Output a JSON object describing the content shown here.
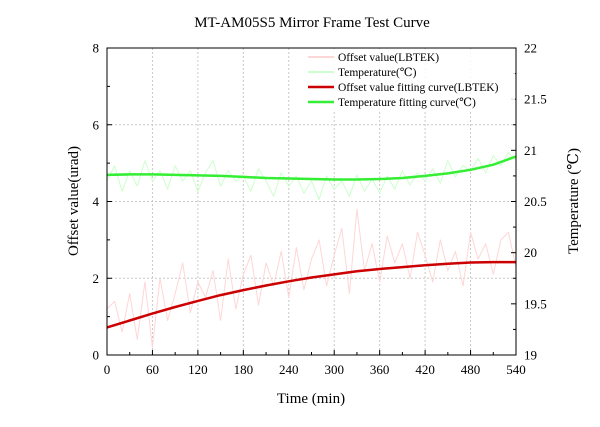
{
  "chart_data": {
    "type": "line",
    "title": "MT-AM05S5 Mirror Frame Test Curve",
    "xlabel": "Time (min)",
    "ylabel": "Offset value(urad)",
    "y2label": "Temperature (℃)",
    "xlim": [
      0,
      540
    ],
    "ylim": [
      0,
      8
    ],
    "y2lim": [
      19,
      22
    ],
    "xticks": [
      "0",
      "60",
      "120",
      "180",
      "240",
      "300",
      "360",
      "420",
      "480",
      "540"
    ],
    "yticks": [
      "0",
      "2",
      "4",
      "6",
      "8"
    ],
    "y2ticks": [
      "19",
      "19.5",
      "20",
      "20.5",
      "21",
      "21.5",
      "22"
    ],
    "grid": true,
    "legend_position": "top-right",
    "series": [
      {
        "name": "Offset value(LBTEK)",
        "axis": "left",
        "color": "#ffd6d6",
        "x": [
          0,
          10,
          20,
          30,
          40,
          50,
          60,
          70,
          80,
          90,
          100,
          110,
          120,
          130,
          140,
          150,
          160,
          170,
          180,
          190,
          200,
          210,
          220,
          230,
          240,
          250,
          260,
          270,
          280,
          290,
          300,
          310,
          320,
          330,
          340,
          350,
          360,
          370,
          380,
          390,
          400,
          410,
          420,
          430,
          440,
          450,
          460,
          470,
          480,
          490,
          500,
          510,
          520,
          530,
          540
        ],
        "values": [
          1.2,
          1.4,
          0.6,
          1.6,
          0.4,
          1.9,
          0.2,
          2.0,
          0.9,
          1.6,
          2.4,
          1.1,
          1.9,
          1.5,
          2.2,
          0.9,
          2.5,
          1.2,
          2.1,
          2.6,
          1.3,
          2.4,
          1.8,
          2.7,
          1.5,
          2.8,
          1.7,
          2.5,
          3.0,
          1.8,
          2.6,
          3.3,
          1.6,
          3.8,
          2.2,
          2.9,
          1.9,
          3.1,
          2.4,
          2.9,
          2.0,
          3.2,
          2.6,
          1.9,
          3.0,
          2.2,
          2.7,
          1.8,
          3.2,
          2.5,
          2.9,
          2.1,
          3.0,
          3.2,
          2.3
        ]
      },
      {
        "name": "Temperature(℃)",
        "axis": "right",
        "color": "#ccffcc",
        "x": [
          0,
          10,
          20,
          30,
          40,
          50,
          60,
          70,
          80,
          90,
          100,
          110,
          120,
          130,
          140,
          150,
          160,
          170,
          180,
          190,
          200,
          210,
          220,
          230,
          240,
          250,
          260,
          270,
          280,
          290,
          300,
          310,
          320,
          330,
          340,
          350,
          360,
          370,
          380,
          390,
          400,
          410,
          420,
          430,
          440,
          450,
          460,
          470,
          480,
          490,
          500,
          510,
          520,
          530,
          540
        ],
        "values": [
          20.7,
          20.85,
          20.6,
          20.8,
          20.65,
          20.9,
          20.7,
          20.8,
          20.62,
          20.85,
          20.7,
          20.8,
          20.6,
          20.78,
          20.9,
          20.65,
          20.8,
          20.7,
          20.75,
          20.6,
          20.82,
          20.7,
          20.55,
          20.78,
          20.65,
          20.75,
          20.58,
          20.7,
          20.52,
          20.75,
          20.62,
          20.7,
          20.55,
          20.76,
          20.6,
          20.72,
          20.58,
          20.75,
          20.62,
          20.8,
          20.66,
          20.78,
          20.7,
          20.82,
          20.68,
          20.9,
          20.74,
          20.85,
          20.8,
          20.92,
          20.78,
          20.95,
          20.85,
          20.98,
          20.9
        ]
      },
      {
        "name": "Offset value fitting curve(LBTEK)",
        "axis": "left",
        "color": "#cc0000",
        "x": [
          0,
          30,
          60,
          90,
          120,
          150,
          180,
          210,
          240,
          270,
          300,
          330,
          360,
          390,
          420,
          450,
          480,
          510,
          540
        ],
        "values": [
          0.72,
          0.9,
          1.08,
          1.25,
          1.41,
          1.56,
          1.69,
          1.81,
          1.92,
          2.02,
          2.1,
          2.18,
          2.24,
          2.29,
          2.34,
          2.38,
          2.41,
          2.42,
          2.42
        ]
      },
      {
        "name": "Temperature fitting curve(℃)",
        "axis": "right",
        "color": "#33ee33",
        "x": [
          0,
          30,
          60,
          90,
          120,
          150,
          180,
          210,
          240,
          270,
          300,
          330,
          360,
          390,
          420,
          450,
          480,
          510,
          540
        ],
        "values": [
          20.76,
          20.765,
          20.765,
          20.76,
          20.755,
          20.75,
          20.74,
          20.73,
          20.725,
          20.72,
          20.715,
          20.715,
          20.72,
          20.73,
          20.75,
          20.775,
          20.81,
          20.86,
          20.94
        ]
      }
    ]
  }
}
